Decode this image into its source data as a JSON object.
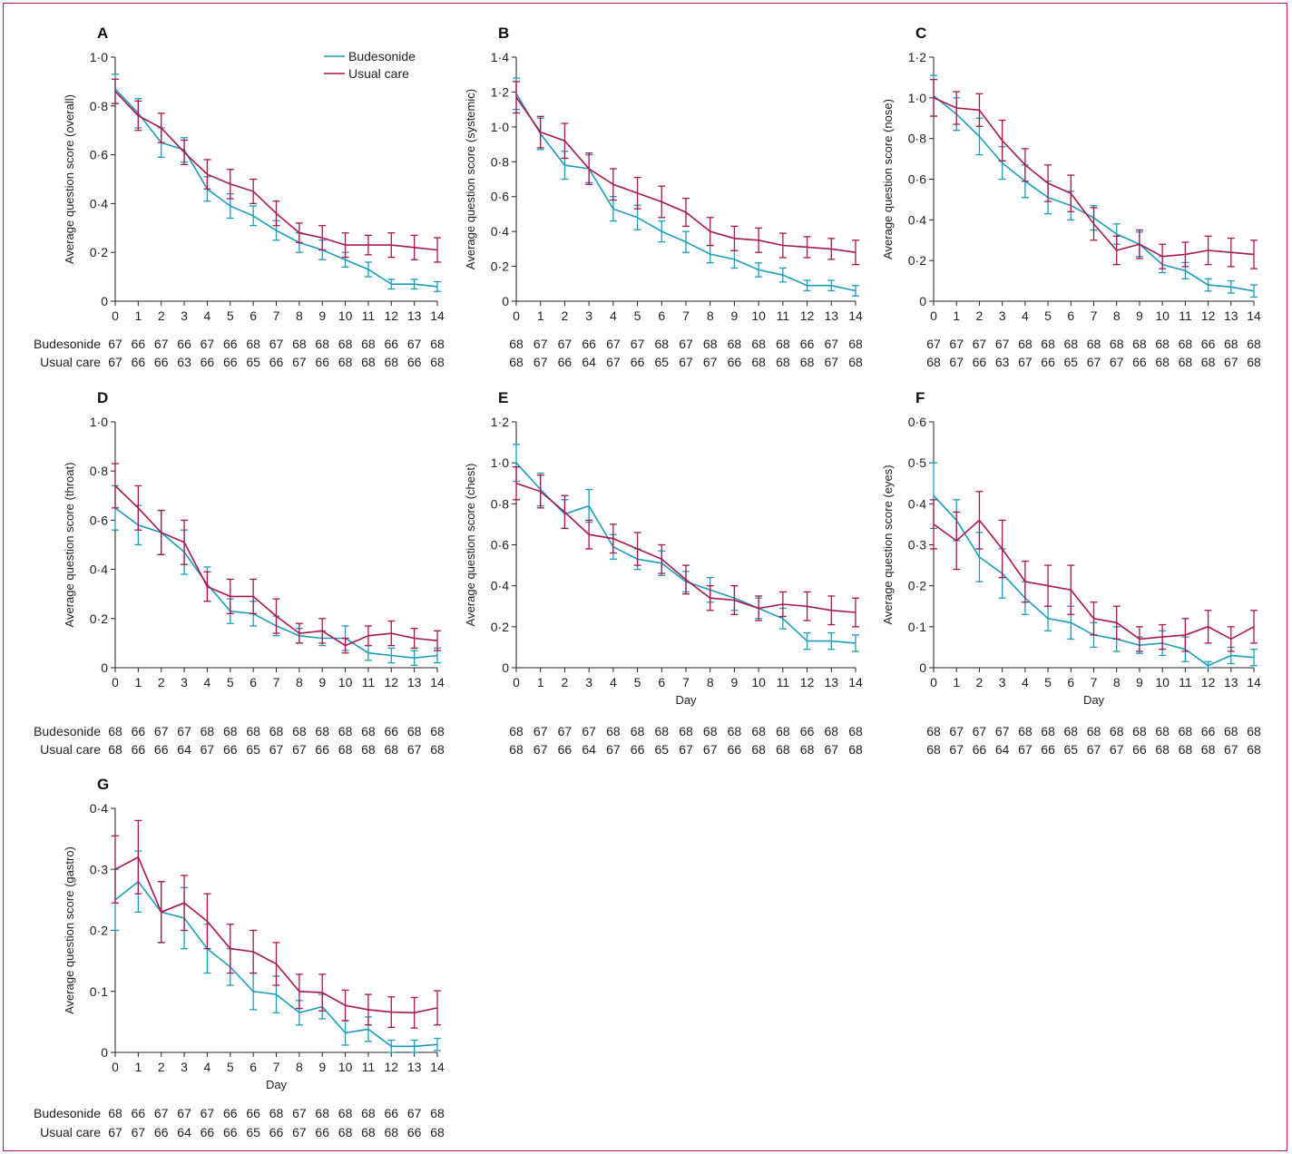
{
  "colors": {
    "budesonide": "#1a9dbd",
    "usual_care": "#a8174d",
    "frame": "#c2185b",
    "axis": "#222222"
  },
  "labels": {
    "budesonide": "Budesonide",
    "usual_care": "Usual care"
  },
  "chart_data": [
    {
      "type": "line",
      "panel": "A",
      "ylabel": "Average question score (overall)",
      "xlabel": "",
      "x": [
        0,
        1,
        2,
        3,
        4,
        5,
        6,
        7,
        8,
        9,
        10,
        11,
        12,
        13,
        14
      ],
      "ylim": [
        0,
        1.0
      ],
      "yticks": [
        0,
        0.2,
        0.4,
        0.6,
        0.8,
        1.0
      ],
      "ytick_labels": [
        "0",
        "0·2",
        "0·4",
        "0·6",
        "0·8",
        "1·0"
      ],
      "legend": "top-right",
      "series": [
        {
          "name": "Budesonide",
          "values": [
            0.87,
            0.77,
            0.65,
            0.62,
            0.46,
            0.39,
            0.35,
            0.29,
            0.24,
            0.21,
            0.17,
            0.13,
            0.07,
            0.07,
            0.06
          ],
          "err": [
            0.06,
            0.06,
            0.06,
            0.05,
            0.05,
            0.05,
            0.04,
            0.04,
            0.04,
            0.04,
            0.03,
            0.03,
            0.02,
            0.02,
            0.02
          ]
        },
        {
          "name": "Usual care",
          "values": [
            0.86,
            0.76,
            0.71,
            0.61,
            0.52,
            0.48,
            0.45,
            0.36,
            0.28,
            0.26,
            0.23,
            0.23,
            0.23,
            0.22,
            0.21
          ],
          "err": [
            0.05,
            0.06,
            0.06,
            0.05,
            0.06,
            0.06,
            0.05,
            0.05,
            0.04,
            0.05,
            0.05,
            0.04,
            0.05,
            0.05,
            0.05
          ]
        }
      ],
      "n_rows": [
        {
          "label": "Budesonide",
          "values": [
            "67",
            "66",
            "67",
            "66",
            "67",
            "66",
            "68",
            "67",
            "68",
            "68",
            "68",
            "68",
            "66",
            "67",
            "68"
          ]
        },
        {
          "label": "Usual care",
          "values": [
            "67",
            "66",
            "66",
            "63",
            "66",
            "66",
            "65",
            "66",
            "67",
            "66",
            "68",
            "68",
            "68",
            "66",
            "68"
          ]
        }
      ]
    },
    {
      "type": "line",
      "panel": "B",
      "ylabel": "Average question score (systemic)",
      "xlabel": "",
      "x": [
        0,
        1,
        2,
        3,
        4,
        5,
        6,
        7,
        8,
        9,
        10,
        11,
        12,
        13,
        14
      ],
      "ylim": [
        0,
        1.4
      ],
      "yticks": [
        0,
        0.2,
        0.4,
        0.6,
        0.8,
        1.0,
        1.2,
        1.4
      ],
      "ytick_labels": [
        "0",
        "0·2",
        "0·4",
        "0·6",
        "0·8",
        "1·0",
        "1·2",
        "1·4"
      ],
      "series": [
        {
          "name": "Budesonide",
          "values": [
            1.19,
            0.96,
            0.78,
            0.76,
            0.53,
            0.48,
            0.4,
            0.34,
            0.27,
            0.24,
            0.18,
            0.15,
            0.09,
            0.09,
            0.06
          ],
          "err": [
            0.09,
            0.09,
            0.08,
            0.08,
            0.07,
            0.07,
            0.06,
            0.06,
            0.05,
            0.05,
            0.04,
            0.04,
            0.03,
            0.03,
            0.03
          ]
        },
        {
          "name": "Usual care",
          "values": [
            1.17,
            0.97,
            0.92,
            0.76,
            0.67,
            0.62,
            0.57,
            0.51,
            0.4,
            0.36,
            0.35,
            0.32,
            0.31,
            0.3,
            0.28
          ],
          "err": [
            0.09,
            0.09,
            0.1,
            0.09,
            0.09,
            0.09,
            0.09,
            0.08,
            0.08,
            0.07,
            0.07,
            0.07,
            0.06,
            0.06,
            0.07
          ]
        }
      ],
      "n_rows": [
        {
          "label": "",
          "values": [
            "68",
            "67",
            "67",
            "66",
            "67",
            "67",
            "68",
            "67",
            "68",
            "68",
            "68",
            "68",
            "66",
            "67",
            "68"
          ]
        },
        {
          "label": "",
          "values": [
            "68",
            "67",
            "66",
            "64",
            "67",
            "66",
            "65",
            "67",
            "67",
            "66",
            "68",
            "68",
            "68",
            "67",
            "68"
          ]
        }
      ]
    },
    {
      "type": "line",
      "panel": "C",
      "ylabel": "Average question score (nose)",
      "xlabel": "",
      "x": [
        0,
        1,
        2,
        3,
        4,
        5,
        6,
        7,
        8,
        9,
        10,
        11,
        12,
        13,
        14
      ],
      "ylim": [
        0,
        1.2
      ],
      "yticks": [
        0,
        0.2,
        0.4,
        0.6,
        0.8,
        1.0,
        1.2
      ],
      "ytick_labels": [
        "0",
        "0·2",
        "0·4",
        "0·6",
        "0·8",
        "1·0",
        "1·2"
      ],
      "series": [
        {
          "name": "Budesonide",
          "values": [
            1.01,
            0.92,
            0.81,
            0.68,
            0.59,
            0.51,
            0.47,
            0.41,
            0.33,
            0.28,
            0.18,
            0.15,
            0.08,
            0.07,
            0.05
          ],
          "err": [
            0.1,
            0.08,
            0.09,
            0.08,
            0.08,
            0.08,
            0.07,
            0.06,
            0.05,
            0.06,
            0.04,
            0.04,
            0.03,
            0.03,
            0.03
          ]
        },
        {
          "name": "Usual care",
          "values": [
            1.0,
            0.95,
            0.94,
            0.79,
            0.67,
            0.58,
            0.53,
            0.38,
            0.25,
            0.28,
            0.22,
            0.23,
            0.25,
            0.24,
            0.23
          ],
          "err": [
            0.09,
            0.08,
            0.08,
            0.1,
            0.08,
            0.09,
            0.09,
            0.08,
            0.07,
            0.07,
            0.06,
            0.06,
            0.07,
            0.07,
            0.07
          ]
        }
      ],
      "n_rows": [
        {
          "label": "",
          "values": [
            "67",
            "67",
            "67",
            "67",
            "68",
            "68",
            "68",
            "68",
            "68",
            "68",
            "68",
            "68",
            "66",
            "68",
            "68"
          ]
        },
        {
          "label": "",
          "values": [
            "68",
            "67",
            "66",
            "63",
            "67",
            "66",
            "65",
            "67",
            "67",
            "66",
            "68",
            "68",
            "68",
            "67",
            "68"
          ]
        }
      ]
    },
    {
      "type": "line",
      "panel": "D",
      "ylabel": "Average question score (throat)",
      "xlabel": "",
      "x": [
        0,
        1,
        2,
        3,
        4,
        5,
        6,
        7,
        8,
        9,
        10,
        11,
        12,
        13,
        14
      ],
      "ylim": [
        0,
        1.0
      ],
      "yticks": [
        0,
        0.2,
        0.4,
        0.6,
        0.8,
        1.0
      ],
      "ytick_labels": [
        "0",
        "0·2",
        "0·4",
        "0·6",
        "0·8",
        "1·0"
      ],
      "series": [
        {
          "name": "Budesonide",
          "values": [
            0.65,
            0.58,
            0.55,
            0.47,
            0.34,
            0.23,
            0.22,
            0.17,
            0.13,
            0.12,
            0.12,
            0.06,
            0.05,
            0.04,
            0.05
          ],
          "err": [
            0.09,
            0.08,
            0.09,
            0.09,
            0.07,
            0.05,
            0.05,
            0.04,
            0.03,
            0.03,
            0.05,
            0.03,
            0.03,
            0.03,
            0.03
          ]
        },
        {
          "name": "Usual care",
          "values": [
            0.74,
            0.65,
            0.55,
            0.51,
            0.33,
            0.29,
            0.29,
            0.21,
            0.14,
            0.15,
            0.09,
            0.13,
            0.14,
            0.12,
            0.11
          ],
          "err": [
            0.09,
            0.09,
            0.09,
            0.09,
            0.06,
            0.07,
            0.07,
            0.07,
            0.04,
            0.05,
            0.03,
            0.04,
            0.05,
            0.04,
            0.04
          ]
        }
      ],
      "n_rows": [
        {
          "label": "Budesonide",
          "values": [
            "68",
            "66",
            "67",
            "67",
            "68",
            "68",
            "68",
            "68",
            "68",
            "68",
            "68",
            "68",
            "66",
            "68",
            "68"
          ]
        },
        {
          "label": "Usual care",
          "values": [
            "68",
            "66",
            "66",
            "64",
            "67",
            "66",
            "65",
            "67",
            "67",
            "66",
            "68",
            "68",
            "68",
            "67",
            "68"
          ]
        }
      ]
    },
    {
      "type": "line",
      "panel": "E",
      "ylabel": "Average question score (chest)",
      "xlabel": "Day",
      "x": [
        0,
        1,
        2,
        3,
        4,
        5,
        6,
        7,
        8,
        9,
        10,
        11,
        12,
        13,
        14
      ],
      "ylim": [
        0,
        1.2
      ],
      "yticks": [
        0,
        0.2,
        0.4,
        0.6,
        0.8,
        1.0,
        1.2
      ],
      "ytick_labels": [
        "0",
        "0·2",
        "0·4",
        "0·6",
        "0·8",
        "1·0",
        "1·2"
      ],
      "series": [
        {
          "name": "Budesonide",
          "values": [
            1.0,
            0.87,
            0.75,
            0.79,
            0.59,
            0.53,
            0.51,
            0.42,
            0.38,
            0.34,
            0.29,
            0.24,
            0.13,
            0.13,
            0.12
          ],
          "err": [
            0.09,
            0.08,
            0.07,
            0.08,
            0.06,
            0.05,
            0.06,
            0.05,
            0.06,
            0.06,
            0.05,
            0.05,
            0.04,
            0.04,
            0.04
          ]
        },
        {
          "name": "Usual care",
          "values": [
            0.9,
            0.86,
            0.76,
            0.65,
            0.63,
            0.58,
            0.53,
            0.43,
            0.34,
            0.33,
            0.29,
            0.31,
            0.3,
            0.28,
            0.27
          ],
          "err": [
            0.08,
            0.08,
            0.08,
            0.07,
            0.07,
            0.08,
            0.07,
            0.07,
            0.06,
            0.07,
            0.06,
            0.06,
            0.07,
            0.07,
            0.07
          ]
        }
      ],
      "n_rows": [
        {
          "label": "",
          "values": [
            "68",
            "67",
            "67",
            "67",
            "68",
            "68",
            "68",
            "68",
            "68",
            "68",
            "68",
            "68",
            "66",
            "68",
            "68"
          ]
        },
        {
          "label": "",
          "values": [
            "68",
            "67",
            "66",
            "64",
            "67",
            "66",
            "65",
            "67",
            "67",
            "66",
            "68",
            "68",
            "68",
            "67",
            "68"
          ]
        }
      ]
    },
    {
      "type": "line",
      "panel": "F",
      "ylabel": "Average question score (eyes)",
      "xlabel": "Day",
      "x": [
        0,
        1,
        2,
        3,
        4,
        5,
        6,
        7,
        8,
        9,
        10,
        11,
        12,
        13,
        14
      ],
      "ylim": [
        0,
        0.6
      ],
      "yticks": [
        0,
        0.1,
        0.2,
        0.3,
        0.4,
        0.5,
        0.6
      ],
      "ytick_labels": [
        "0",
        "0·1",
        "0·2",
        "0·3",
        "0·4",
        "0·5",
        "0·6"
      ],
      "series": [
        {
          "name": "Budesonide",
          "values": [
            0.42,
            0.36,
            0.27,
            0.23,
            0.17,
            0.12,
            0.11,
            0.08,
            0.07,
            0.055,
            0.06,
            0.045,
            0.005,
            0.03,
            0.025
          ],
          "err": [
            0.08,
            0.05,
            0.06,
            0.06,
            0.04,
            0.03,
            0.04,
            0.03,
            0.03,
            0.02,
            0.03,
            0.03,
            0.01,
            0.02,
            0.02
          ]
        },
        {
          "name": "Usual care",
          "values": [
            0.35,
            0.31,
            0.36,
            0.29,
            0.21,
            0.2,
            0.19,
            0.12,
            0.11,
            0.07,
            0.075,
            0.08,
            0.1,
            0.07,
            0.1
          ],
          "err": [
            0.06,
            0.07,
            0.07,
            0.07,
            0.05,
            0.05,
            0.06,
            0.04,
            0.04,
            0.03,
            0.03,
            0.04,
            0.04,
            0.03,
            0.04
          ]
        }
      ],
      "n_rows": [
        {
          "label": "",
          "values": [
            "68",
            "67",
            "67",
            "67",
            "68",
            "68",
            "68",
            "68",
            "68",
            "68",
            "68",
            "68",
            "66",
            "68",
            "68"
          ]
        },
        {
          "label": "",
          "values": [
            "68",
            "67",
            "66",
            "64",
            "67",
            "66",
            "65",
            "67",
            "67",
            "66",
            "68",
            "68",
            "68",
            "67",
            "68"
          ]
        }
      ]
    },
    {
      "type": "line",
      "panel": "G",
      "ylabel": "Average question score (gastro)",
      "xlabel": "Day",
      "x": [
        0,
        1,
        2,
        3,
        4,
        5,
        6,
        7,
        8,
        9,
        10,
        11,
        12,
        13,
        14
      ],
      "ylim": [
        0,
        0.4
      ],
      "yticks": [
        0,
        0.1,
        0.2,
        0.3,
        0.4
      ],
      "ytick_labels": [
        "0",
        "0·1",
        "0·2",
        "0·3",
        "0·4"
      ],
      "series": [
        {
          "name": "Budesonide",
          "values": [
            0.25,
            0.28,
            0.23,
            0.22,
            0.17,
            0.14,
            0.1,
            0.095,
            0.065,
            0.075,
            0.032,
            0.038,
            0.01,
            0.01,
            0.013
          ],
          "err": [
            0.05,
            0.05,
            0.05,
            0.05,
            0.04,
            0.03,
            0.03,
            0.03,
            0.02,
            0.02,
            0.02,
            0.02,
            0.01,
            0.01,
            0.01
          ]
        },
        {
          "name": "Usual care",
          "values": [
            0.3,
            0.32,
            0.23,
            0.245,
            0.215,
            0.17,
            0.165,
            0.145,
            0.1,
            0.098,
            0.077,
            0.07,
            0.066,
            0.065,
            0.073
          ],
          "err": [
            0.055,
            0.06,
            0.05,
            0.045,
            0.045,
            0.04,
            0.035,
            0.035,
            0.028,
            0.03,
            0.025,
            0.025,
            0.025,
            0.025,
            0.028
          ]
        }
      ],
      "n_rows": [
        {
          "label": "Budesonide",
          "values": [
            "68",
            "66",
            "67",
            "67",
            "67",
            "66",
            "66",
            "68",
            "67",
            "68",
            "68",
            "68",
            "66",
            "67",
            "68"
          ]
        },
        {
          "label": "Usual care",
          "values": [
            "67",
            "67",
            "66",
            "64",
            "66",
            "66",
            "65",
            "66",
            "67",
            "66",
            "68",
            "68",
            "68",
            "66",
            "68"
          ]
        }
      ]
    }
  ]
}
